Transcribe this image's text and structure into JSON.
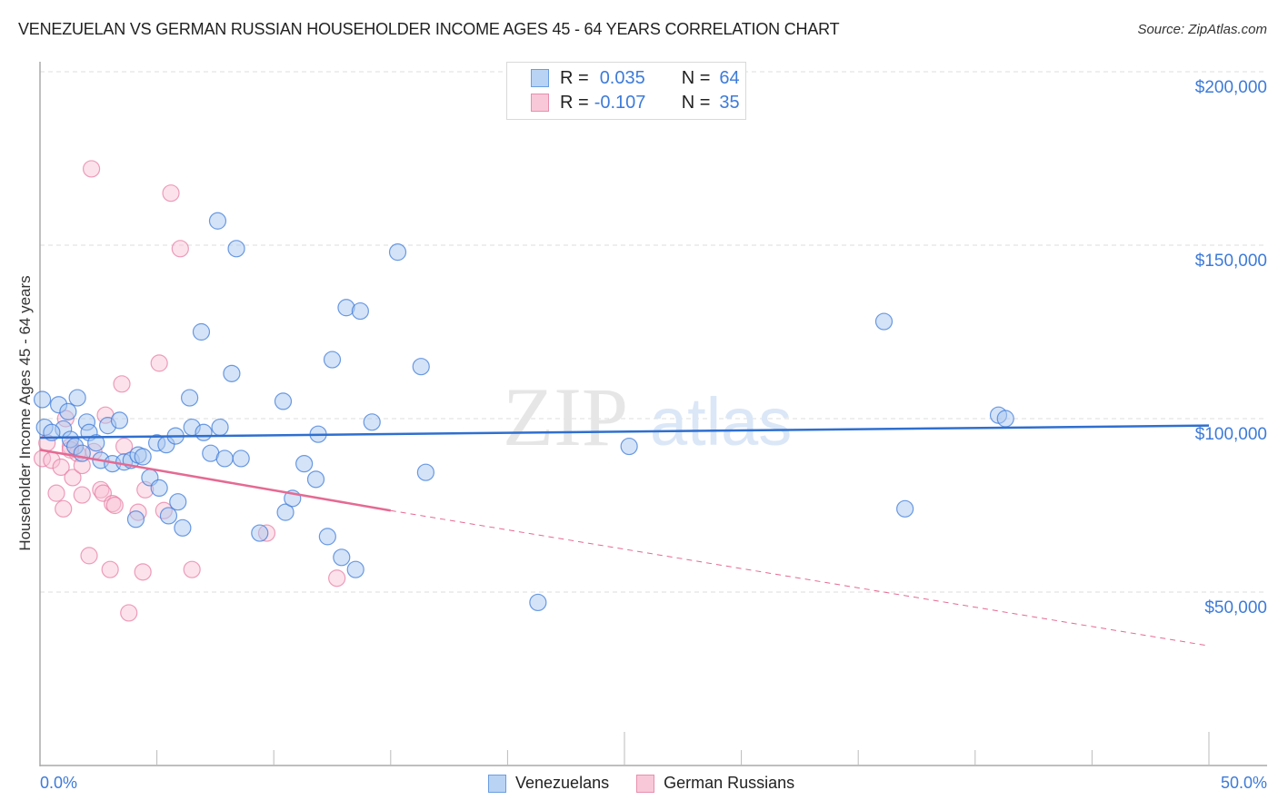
{
  "header": {
    "title": "VENEZUELAN VS GERMAN RUSSIAN HOUSEHOLDER INCOME AGES 45 - 64 YEARS CORRELATION CHART",
    "source": "Source: ZipAtlas.com"
  },
  "legend": {
    "rows": [
      {
        "r_label": "R =",
        "r_value": "0.035",
        "n_label": "N =",
        "n_value": "64",
        "color": "#b9d3f5"
      },
      {
        "r_label": "R =",
        "r_value": "-0.107",
        "n_label": "N =",
        "n_value": "35",
        "color": "#f9c8d8"
      }
    ],
    "series": [
      {
        "name": "Venezuelans",
        "color": "#b9d3f5"
      },
      {
        "name": "German Russians",
        "color": "#f9c8d8"
      }
    ]
  },
  "axes": {
    "y_label": "Householder Income Ages 45 - 64 years",
    "y_ticks": [
      "$200,000",
      "$150,000",
      "$100,000",
      "$50,000"
    ],
    "x_ticks": [
      "0.0%",
      "50.0%"
    ]
  },
  "watermark": {
    "zip": "ZIP",
    "atlas": "atlas"
  },
  "colors": {
    "blue": "#3d7bd9",
    "blue_line": "#2f6fcf",
    "pink_line": "#e56a93"
  },
  "chart_data": {
    "type": "scatter",
    "title": "VENEZUELAN VS GERMAN RUSSIAN HOUSEHOLDER INCOME AGES 45 - 64 YEARS CORRELATION CHART",
    "xlabel": "",
    "ylabel": "Householder Income Ages 45 - 64 years",
    "xlim": [
      0,
      50
    ],
    "ylim": [
      0,
      200000
    ],
    "x_unit": "%",
    "grid": true,
    "legend_position": "top-center",
    "series": [
      {
        "name": "Venezuelans",
        "R": 0.035,
        "N": 64,
        "color": "#b9d3f5",
        "trend": {
          "x": [
            0,
            50
          ],
          "y": [
            94500,
            98000
          ]
        },
        "points": [
          [
            0.1,
            105500
          ],
          [
            0.2,
            97500
          ],
          [
            0.8,
            104000
          ],
          [
            1.0,
            97000
          ],
          [
            1.2,
            102000
          ],
          [
            1.3,
            94000
          ],
          [
            1.5,
            92000
          ],
          [
            1.6,
            106000
          ],
          [
            1.8,
            90000
          ],
          [
            2.0,
            99000
          ],
          [
            2.1,
            96000
          ],
          [
            2.4,
            93000
          ],
          [
            2.6,
            88000
          ],
          [
            2.9,
            98000
          ],
          [
            3.1,
            87000
          ],
          [
            3.4,
            99500
          ],
          [
            3.6,
            87500
          ],
          [
            3.9,
            88000
          ],
          [
            4.1,
            71000
          ],
          [
            4.2,
            89500
          ],
          [
            4.4,
            89000
          ],
          [
            4.7,
            83000
          ],
          [
            5.0,
            93000
          ],
          [
            5.1,
            80000
          ],
          [
            5.4,
            92500
          ],
          [
            5.5,
            72000
          ],
          [
            5.8,
            95000
          ],
          [
            5.9,
            76000
          ],
          [
            6.1,
            68500
          ],
          [
            6.4,
            106000
          ],
          [
            6.5,
            97500
          ],
          [
            6.9,
            125000
          ],
          [
            7.0,
            96000
          ],
          [
            7.3,
            90000
          ],
          [
            7.6,
            157000
          ],
          [
            7.7,
            97500
          ],
          [
            7.9,
            88500
          ],
          [
            8.2,
            113000
          ],
          [
            8.4,
            149000
          ],
          [
            8.6,
            88500
          ],
          [
            9.4,
            67000
          ],
          [
            10.4,
            105000
          ],
          [
            10.5,
            73000
          ],
          [
            10.8,
            77000
          ],
          [
            11.3,
            87000
          ],
          [
            11.8,
            82500
          ],
          [
            11.9,
            95500
          ],
          [
            12.3,
            66000
          ],
          [
            12.5,
            117000
          ],
          [
            12.9,
            60000
          ],
          [
            13.1,
            132000
          ],
          [
            13.5,
            56500
          ],
          [
            13.7,
            131000
          ],
          [
            14.2,
            99000
          ],
          [
            15.3,
            148000
          ],
          [
            16.3,
            115000
          ],
          [
            16.5,
            84500
          ],
          [
            21.3,
            47000
          ],
          [
            25.2,
            92000
          ],
          [
            36.1,
            128000
          ],
          [
            37.0,
            74000
          ],
          [
            41.0,
            101000
          ],
          [
            41.3,
            100000
          ],
          [
            0.5,
            96000
          ]
        ]
      },
      {
        "name": "German Russians",
        "R": -0.107,
        "N": 35,
        "color": "#f9c8d8",
        "trend": {
          "x": [
            0,
            15
          ],
          "y": [
            91000,
            73500
          ],
          "extended_x": [
            15,
            50
          ],
          "extended_y": [
            73500,
            34500
          ]
        },
        "points": [
          [
            0.1,
            88500
          ],
          [
            0.3,
            93000
          ],
          [
            0.5,
            88000
          ],
          [
            0.7,
            78500
          ],
          [
            0.9,
            86000
          ],
          [
            1.0,
            74000
          ],
          [
            1.1,
            100000
          ],
          [
            1.3,
            92000
          ],
          [
            1.4,
            83000
          ],
          [
            1.6,
            90000
          ],
          [
            1.8,
            86500
          ],
          [
            1.8,
            78000
          ],
          [
            2.1,
            60500
          ],
          [
            2.2,
            172000
          ],
          [
            2.3,
            90500
          ],
          [
            2.6,
            79500
          ],
          [
            2.7,
            78500
          ],
          [
            2.8,
            101000
          ],
          [
            3.0,
            56500
          ],
          [
            3.1,
            75500
          ],
          [
            3.2,
            75000
          ],
          [
            3.5,
            110000
          ],
          [
            3.6,
            92000
          ],
          [
            3.8,
            44000
          ],
          [
            4.2,
            73000
          ],
          [
            4.4,
            55800
          ],
          [
            4.5,
            79500
          ],
          [
            5.1,
            116000
          ],
          [
            5.3,
            73500
          ],
          [
            5.6,
            165000
          ],
          [
            6.0,
            149000
          ],
          [
            6.5,
            56500
          ],
          [
            9.7,
            67000
          ],
          [
            12.7,
            54000
          ],
          [
            1.3,
            91000
          ]
        ]
      }
    ]
  }
}
